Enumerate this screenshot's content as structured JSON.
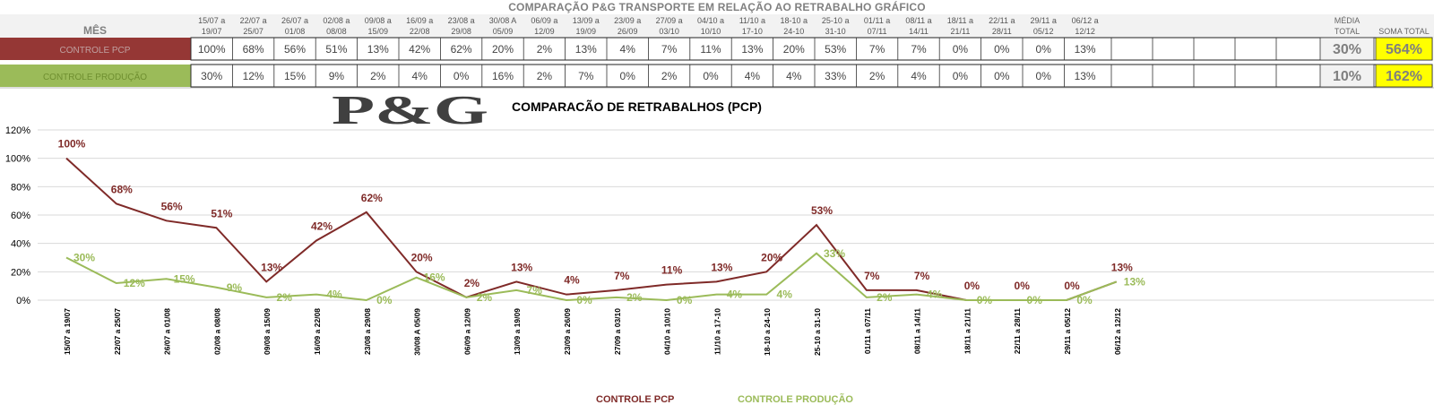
{
  "header": {
    "title": "COMPARAÇÃO P&G  TRANSPORTE EM RELAÇÃO AO RETRABALHO GRÁFICO",
    "month_label": "MÊS",
    "avg_label_line1": "MÉDIA",
    "avg_label_line2": "TOTAL",
    "sum_label": "SOMA TOTAL"
  },
  "periods": [
    [
      "15/07 a",
      "19/07"
    ],
    [
      "22/07 a",
      "25/07"
    ],
    [
      "26/07 a",
      "01/08"
    ],
    [
      "02/08 a",
      "08/08"
    ],
    [
      "09/08 a",
      "15/09"
    ],
    [
      "16/09 a",
      "22/08"
    ],
    [
      "23/08 a",
      "29/08"
    ],
    [
      "30/08 A",
      "05/09"
    ],
    [
      "06/09 a",
      "12/09"
    ],
    [
      "13/09 a",
      "19/09"
    ],
    [
      "23/09 a",
      "26/09"
    ],
    [
      "27/09 a",
      "03/10"
    ],
    [
      "04/10 a",
      "10/10"
    ],
    [
      "11/10 a",
      "17-10"
    ],
    [
      "18-10 a",
      "24-10"
    ],
    [
      "25-10 a",
      "31-10"
    ],
    [
      "01/11 a",
      "07/11"
    ],
    [
      "08/11 a",
      "14/11"
    ],
    [
      "18/11 a",
      "21/11"
    ],
    [
      "22/11 a",
      "28/11"
    ],
    [
      "29/11 a",
      "05/12"
    ],
    [
      "06/12 a",
      "12/12"
    ]
  ],
  "rows": [
    {
      "label": "CONTROLE PCP",
      "color": "#953735",
      "values": [
        "100%",
        "68%",
        "56%",
        "51%",
        "13%",
        "42%",
        "62%",
        "20%",
        "2%",
        "13%",
        "4%",
        "7%",
        "11%",
        "13%",
        "20%",
        "53%",
        "7%",
        "7%",
        "0%",
        "0%",
        "0%",
        "13%"
      ],
      "avg": "30%",
      "sum": "564%"
    },
    {
      "label": "CONTROLE PRODUÇÃO",
      "color": "#9BBB59",
      "values": [
        "30%",
        "12%",
        "15%",
        "9%",
        "2%",
        "4%",
        "0%",
        "16%",
        "2%",
        "7%",
        "0%",
        "2%",
        "0%",
        "4%",
        "4%",
        "33%",
        "2%",
        "4%",
        "0%",
        "0%",
        "0%",
        "13%"
      ],
      "avg": "10%",
      "sum": "162%"
    }
  ],
  "logo_text": "P&G",
  "chart_data": {
    "type": "line",
    "title": "COMPARACÃO DE RETRABALHOS  (PCP)",
    "categories": [
      "15/07 a 19/07",
      "22/07 a 25/07",
      "26/07 a 01/08",
      "02/08 a 08/08",
      "09/08 a 15/09",
      "16/09 a 22/08",
      "23/08 a 29/08",
      "30/08 A 05/09",
      "06/09 a 12/09",
      "13/09 a 19/09",
      "23/09 a 26/09",
      "27/09 a 03/10",
      "04/10 a 10/10",
      "11/10 a 17-10",
      "18-10 a 24-10",
      "25-10 a 31-10",
      "01/11 a 07/11",
      "08/11 a 14/11",
      "18/11 a 21/11",
      "22/11 a 28/11",
      "29/11 a 05/12",
      "06/12 a 12/12"
    ],
    "series": [
      {
        "name": "CONTROLE PCP",
        "color": "#7F2A28",
        "values": [
          100,
          68,
          56,
          51,
          13,
          42,
          62,
          20,
          2,
          13,
          4,
          7,
          11,
          13,
          20,
          53,
          7,
          7,
          0,
          0,
          0,
          13
        ]
      },
      {
        "name": "CONTROLE PRODUÇÃO",
        "color": "#9BBB59",
        "values": [
          30,
          12,
          15,
          9,
          2,
          4,
          0,
          16,
          2,
          7,
          0,
          2,
          0,
          4,
          4,
          33,
          2,
          4,
          0,
          0,
          0,
          13
        ]
      }
    ],
    "yticks": [
      "0%",
      "20%",
      "40%",
      "60%",
      "80%",
      "100%",
      "120%"
    ],
    "ylim": [
      0,
      120
    ],
    "grid": true,
    "legend": "bottom"
  }
}
